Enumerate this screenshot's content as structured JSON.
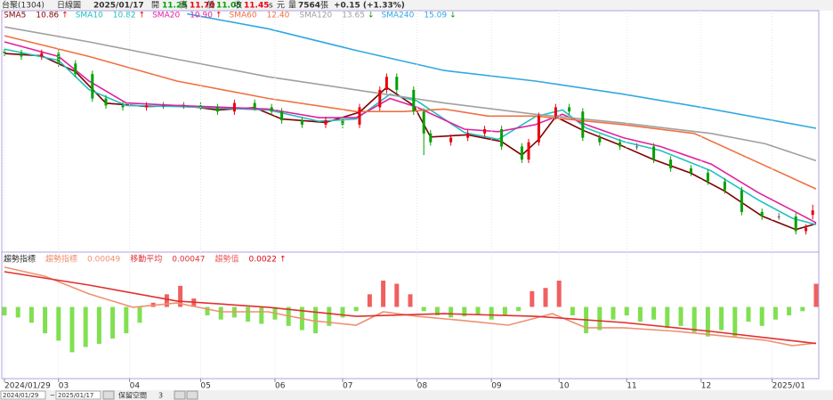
{
  "header": {
    "stock": "台聚(1304)",
    "period": "日線圖",
    "date": "2025/01/17",
    "open_label": "開",
    "open": "11.25",
    "high_label": "高",
    "high": "11.70",
    "low_label": "低",
    "low": "11.05",
    "close_label": "收",
    "close": "11.45",
    "close_mark": "s",
    "unit": "元",
    "volume_label": "量",
    "volume": "7564",
    "volume_unit": "張",
    "change": "+0.15 (+1.33%)"
  },
  "chart_data": [
    {
      "type": "candlestick",
      "up_color": "#e8000b",
      "down_color": "#00a000",
      "flat_color": "#606060",
      "xlim": [
        0,
        240
      ],
      "ylim": [
        9.6,
        20.3
      ],
      "x": [
        0,
        5,
        11,
        16,
        21,
        26,
        30,
        35,
        42,
        47,
        53,
        58,
        63,
        68,
        74,
        79,
        82,
        88,
        95,
        100,
        105,
        111,
        113,
        116,
        121,
        124,
        126,
        132,
        137,
        142,
        147,
        153,
        155,
        158,
        163,
        167,
        171,
        176,
        182,
        187,
        192,
        197,
        203,
        208,
        213,
        218,
        224,
        229,
        234,
        237,
        239
      ],
      "open": [
        18.5,
        18.42,
        18.27,
        18.42,
        17.96,
        17.49,
        16.41,
        16.1,
        16.02,
        16.1,
        16.1,
        16.1,
        16.02,
        15.83,
        16.21,
        16.02,
        15.83,
        15.44,
        15.25,
        15.44,
        15.25,
        16.02,
        16.79,
        17.37,
        16.79,
        15.83,
        14.86,
        14.47,
        14.67,
        14.86,
        15.05,
        14.28,
        13.7,
        14.47,
        15.63,
        16.02,
        15.83,
        14.67,
        14.47,
        14.28,
        14.28,
        13.7,
        13.31,
        13.12,
        12.73,
        12.34,
        11.38,
        11.18,
        11.18,
        10.53,
        11.25
      ],
      "high": [
        18.65,
        18.57,
        18.57,
        18.57,
        18.11,
        17.64,
        16.56,
        16.25,
        16.25,
        16.25,
        16.25,
        16.25,
        16.17,
        16.36,
        16.36,
        16.17,
        15.98,
        15.59,
        15.59,
        15.59,
        16.17,
        16.94,
        17.52,
        17.52,
        16.94,
        15.98,
        15.01,
        14.82,
        15.01,
        15.2,
        15.2,
        14.43,
        14.62,
        15.78,
        16.17,
        16.17,
        15.98,
        14.82,
        14.62,
        14.43,
        14.43,
        13.85,
        13.46,
        13.27,
        12.88,
        12.49,
        11.53,
        11.33,
        11.33,
        10.83,
        11.7
      ],
      "low": [
        18.27,
        18.12,
        18.12,
        17.81,
        17.34,
        16.26,
        15.95,
        15.87,
        15.87,
        15.95,
        15.95,
        15.87,
        15.68,
        15.68,
        15.87,
        15.68,
        15.29,
        15.1,
        15.1,
        15.1,
        15.1,
        15.87,
        16.64,
        16.64,
        15.68,
        13.9,
        14.32,
        14.32,
        14.52,
        14.71,
        14.13,
        13.55,
        13.55,
        14.32,
        15.48,
        15.68,
        14.52,
        14.32,
        14.13,
        14.13,
        13.55,
        13.16,
        12.97,
        12.58,
        12.19,
        11.23,
        11.03,
        11.03,
        10.38,
        10.38,
        11.05
      ],
      "close": [
        18.42,
        18.27,
        18.42,
        17.96,
        17.49,
        16.41,
        16.1,
        16.02,
        16.1,
        16.1,
        16.1,
        16.02,
        15.83,
        16.21,
        16.02,
        15.83,
        15.44,
        15.25,
        15.44,
        15.25,
        16.02,
        16.79,
        17.37,
        16.79,
        15.83,
        14.86,
        14.47,
        14.67,
        14.86,
        15.05,
        14.28,
        13.7,
        14.47,
        15.63,
        16.02,
        15.83,
        14.67,
        14.47,
        14.28,
        14.28,
        13.7,
        13.31,
        13.12,
        12.73,
        12.34,
        11.38,
        11.18,
        11.18,
        10.53,
        10.68,
        11.45
      ],
      "series": [
        {
          "name": "SMA5",
          "legend_value": "10.86",
          "legend_arrow": "↑",
          "arrow_color": "#e8000b",
          "color": "#800000",
          "x": [
            0,
            11,
            21,
            30,
            42,
            53,
            63,
            74,
            82,
            95,
            105,
            113,
            121,
            126,
            137,
            147,
            153,
            158,
            163,
            171,
            182,
            192,
            203,
            213,
            224,
            234,
            240
          ],
          "values": [
            18.4,
            18.3,
            17.6,
            16.2,
            16.05,
            16.1,
            15.9,
            16.0,
            15.5,
            15.35,
            15.8,
            16.9,
            16.1,
            14.7,
            14.8,
            14.5,
            13.9,
            14.6,
            15.6,
            15.0,
            14.35,
            13.7,
            13.1,
            12.3,
            11.2,
            10.6,
            10.86
          ]
        },
        {
          "name": "SMA10",
          "legend_value": "10.82",
          "legend_arrow": "↑",
          "arrow_color": "#e8000b",
          "color": "#20c0c0",
          "x": [
            0,
            16,
            25,
            36,
            51,
            78,
            93,
            104,
            114,
            122,
            136,
            146,
            157,
            165,
            172,
            183,
            194,
            209,
            223,
            233,
            240
          ],
          "values": [
            18.6,
            18.1,
            16.8,
            16.1,
            16.05,
            15.9,
            15.4,
            15.5,
            16.6,
            16.3,
            14.9,
            14.6,
            15.6,
            15.9,
            15.1,
            14.5,
            14.1,
            13.2,
            11.9,
            11.1,
            10.82
          ]
        },
        {
          "name": "SMA20",
          "legend_value": "10.90",
          "legend_arrow": "↑",
          "arrow_color": "#e8000b",
          "color": "#e020a0",
          "x": [
            0,
            16,
            25,
            36,
            51,
            78,
            93,
            104,
            114,
            122,
            136,
            146,
            157,
            165,
            172,
            183,
            194,
            209,
            223,
            233,
            240
          ],
          "values": [
            18.92,
            18.27,
            17.18,
            16.21,
            16.1,
            15.94,
            15.56,
            15.56,
            16.41,
            16.02,
            15.05,
            14.94,
            15.25,
            15.71,
            15.25,
            14.67,
            14.28,
            13.5,
            12.23,
            11.45,
            10.9
          ]
        },
        {
          "name": "SMA60",
          "legend_value": "12.40",
          "legend_arrow": "",
          "arrow_color": "#00a000",
          "color": "#f07040",
          "x": [
            0,
            25,
            51,
            78,
            104,
            118,
            130,
            143,
            157,
            183,
            204,
            221,
            240
          ],
          "values": [
            19.19,
            18.27,
            17.18,
            16.41,
            15.83,
            15.83,
            15.94,
            15.63,
            15.63,
            15.25,
            14.86,
            13.7,
            12.4
          ]
        },
        {
          "name": "SMA120",
          "legend_value": "13.65",
          "legend_arrow": "↓",
          "arrow_color": "#00a000",
          "color": "#a0a0a0",
          "x": [
            0,
            25,
            51,
            78,
            104,
            130,
            157,
            183,
            209,
            225,
            240
          ],
          "values": [
            19.58,
            18.92,
            18.15,
            17.37,
            16.79,
            16.21,
            15.71,
            15.32,
            14.86,
            14.4,
            13.65
          ]
        },
        {
          "name": "SMA240",
          "legend_value": "15.09",
          "legend_arrow": "↓",
          "arrow_color": "#00a000",
          "color": "#30a8e0",
          "x": [
            54,
            78,
            104,
            130,
            157,
            183,
            209,
            240
          ],
          "values": [
            20.16,
            19.5,
            18.54,
            17.65,
            17.18,
            16.6,
            15.94,
            15.09
          ]
        }
      ]
    },
    {
      "type": "bar",
      "title": "趨勢指標",
      "name": "趨勢值",
      "legend_value": "0.0022",
      "legend_arrow": "↑",
      "up_color": "#f06060",
      "down_color": "#80e050",
      "xlim": [
        0,
        240
      ],
      "ylim": [
        -0.0068,
        0.0052
      ],
      "y2lim": [
        -0.001,
        0.0043
      ],
      "x": [
        0,
        4,
        8,
        12,
        16,
        20,
        24,
        28,
        32,
        36,
        40,
        44,
        48,
        52,
        56,
        60,
        64,
        68,
        72,
        76,
        80,
        84,
        88,
        92,
        96,
        100,
        104,
        108,
        112,
        116,
        120,
        124,
        128,
        132,
        136,
        140,
        144,
        148,
        152,
        156,
        160,
        164,
        168,
        172,
        176,
        180,
        184,
        188,
        192,
        196,
        200,
        204,
        208,
        212,
        216,
        220,
        224,
        228,
        232,
        236,
        240
      ],
      "values": [
        -0.0008,
        -0.001,
        -0.0015,
        -0.0025,
        -0.0032,
        -0.0043,
        -0.0038,
        -0.0035,
        -0.003,
        -0.0025,
        -0.0015,
        0.0004,
        0.0012,
        0.002,
        0.0008,
        -0.0008,
        -0.0012,
        -0.001,
        -0.0014,
        -0.0016,
        -0.0012,
        -0.0018,
        -0.0022,
        -0.0025,
        -0.0018,
        -0.001,
        -0.0004,
        0.0012,
        0.0025,
        0.0022,
        0.0012,
        -0.0004,
        -0.0008,
        -0.001,
        -0.0009,
        -0.0007,
        -0.0012,
        -0.0008,
        -0.0004,
        0.0015,
        0.0018,
        0.0025,
        -0.0008,
        -0.0025,
        -0.0022,
        -0.0012,
        -0.0008,
        -0.0014,
        -0.0012,
        -0.002,
        -0.0018,
        -0.0024,
        -0.0028,
        -0.0022,
        -0.0028,
        -0.0014,
        -0.0018,
        -0.0012,
        -0.0008,
        -0.0004,
        0.0022
      ],
      "series": [
        {
          "name": "趨勢指標",
          "legend_value": "0.00049",
          "color": "#f09070",
          "axis": "y2",
          "x": [
            0,
            12,
            25,
            38,
            51,
            64,
            78,
            91,
            104,
            112,
            122,
            136,
            149,
            162,
            172,
            183,
            199,
            215,
            225,
            233,
            240
          ],
          "values": [
            0.00367,
            0.00329,
            0.00255,
            0.00199,
            0.00217,
            0.0018,
            0.0018,
            0.00143,
            0.00124,
            0.0018,
            0.00161,
            0.00143,
            0.00124,
            0.00172,
            0.00113,
            0.00113,
            0.00098,
            0.00075,
            0.00061,
            0.00038,
            0.00049
          ]
        },
        {
          "name": "移動平均",
          "legend_value": "0.00047",
          "color": "#e03030",
          "axis": "y2",
          "x": [
            0,
            25,
            51,
            78,
            104,
            130,
            157,
            183,
            209,
            240
          ],
          "values": [
            0.00348,
            0.00292,
            0.00225,
            0.00199,
            0.00161,
            0.00172,
            0.00161,
            0.00135,
            0.00098,
            0.00047
          ]
        }
      ],
      "xticks": [
        {
          "value": 0,
          "label": "2024/01/29"
        },
        {
          "value": 16,
          "label": "03"
        },
        {
          "value": 37,
          "label": "04"
        },
        {
          "value": 58,
          "label": "05"
        },
        {
          "value": 80,
          "label": "06"
        },
        {
          "value": 100,
          "label": "07"
        },
        {
          "value": 122,
          "label": "08"
        },
        {
          "value": 144,
          "label": "09"
        },
        {
          "value": 164,
          "label": "10"
        },
        {
          "value": 184,
          "label": "11"
        },
        {
          "value": 206,
          "label": "12"
        },
        {
          "value": 227,
          "label": "2025/01"
        }
      ]
    }
  ],
  "controls": {
    "start": "2024/01/29",
    "sep": "~",
    "end": "2025/01/17",
    "reserve_label": "保留空間",
    "reserve": "3"
  }
}
